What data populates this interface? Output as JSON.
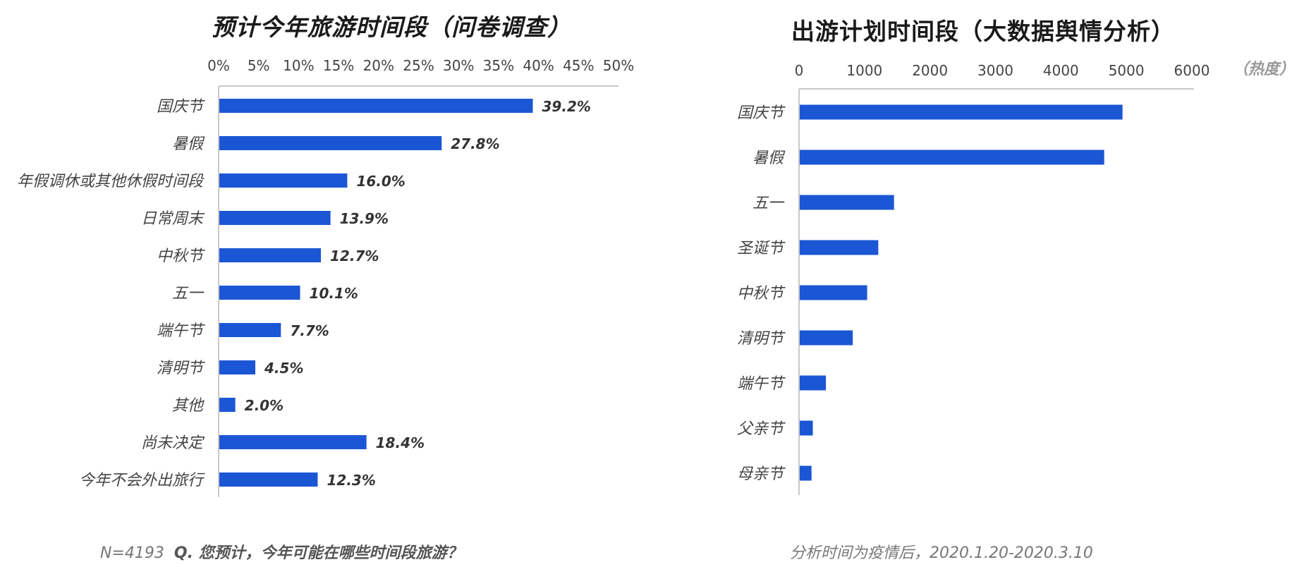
{
  "chart_data": [
    {
      "type": "bar",
      "orientation": "horizontal",
      "title": "预计今年旅游时间段（问卷调查）",
      "categories": [
        "国庆节",
        "暑假",
        "年假调休或其他休假时间段",
        "日常周末",
        "中秋节",
        "五一",
        "端午节",
        "清明节",
        "其他",
        "尚未决定",
        "今年不会外出旅行"
      ],
      "values": [
        39.2,
        27.8,
        16.0,
        13.9,
        12.7,
        10.1,
        7.7,
        4.5,
        2.0,
        18.4,
        12.3
      ],
      "value_labels": [
        "39.2%",
        "27.8%",
        "16.0%",
        "13.9%",
        "12.7%",
        "10.1%",
        "7.7%",
        "4.5%",
        "2.0%",
        "18.4%",
        "12.3%"
      ],
      "xticks": [
        "0%",
        "5%",
        "10%",
        "15%",
        "20%",
        "25%",
        "30%",
        "35%",
        "40%",
        "45%",
        "50%"
      ],
      "xlim": [
        0,
        50
      ],
      "xaxis_position": "top",
      "grid": false,
      "bar_color": "#1b56d4",
      "footnote": {
        "n": "N=4193",
        "question": "Q. 您预计，今年可能在哪些时间段旅游？"
      }
    },
    {
      "type": "bar",
      "orientation": "horizontal",
      "title": "出游计划时间段（大数据舆情分析）",
      "categories": [
        "国庆节",
        "暑假",
        "五一",
        "圣诞节",
        "中秋节",
        "清明节",
        "端午节",
        "父亲节",
        "母亲节"
      ],
      "values": [
        4930,
        4650,
        1440,
        1200,
        1030,
        810,
        400,
        200,
        180
      ],
      "xticks": [
        "0",
        "1000",
        "2000",
        "3000",
        "4000",
        "5000",
        "6000"
      ],
      "xlim": [
        0,
        6000
      ],
      "unit_label": "（热度）",
      "xaxis_position": "top",
      "grid": false,
      "bar_color": "#1b56d4",
      "footnote": "分析时间为疫情后，2020.1.20-2020.3.10"
    }
  ]
}
